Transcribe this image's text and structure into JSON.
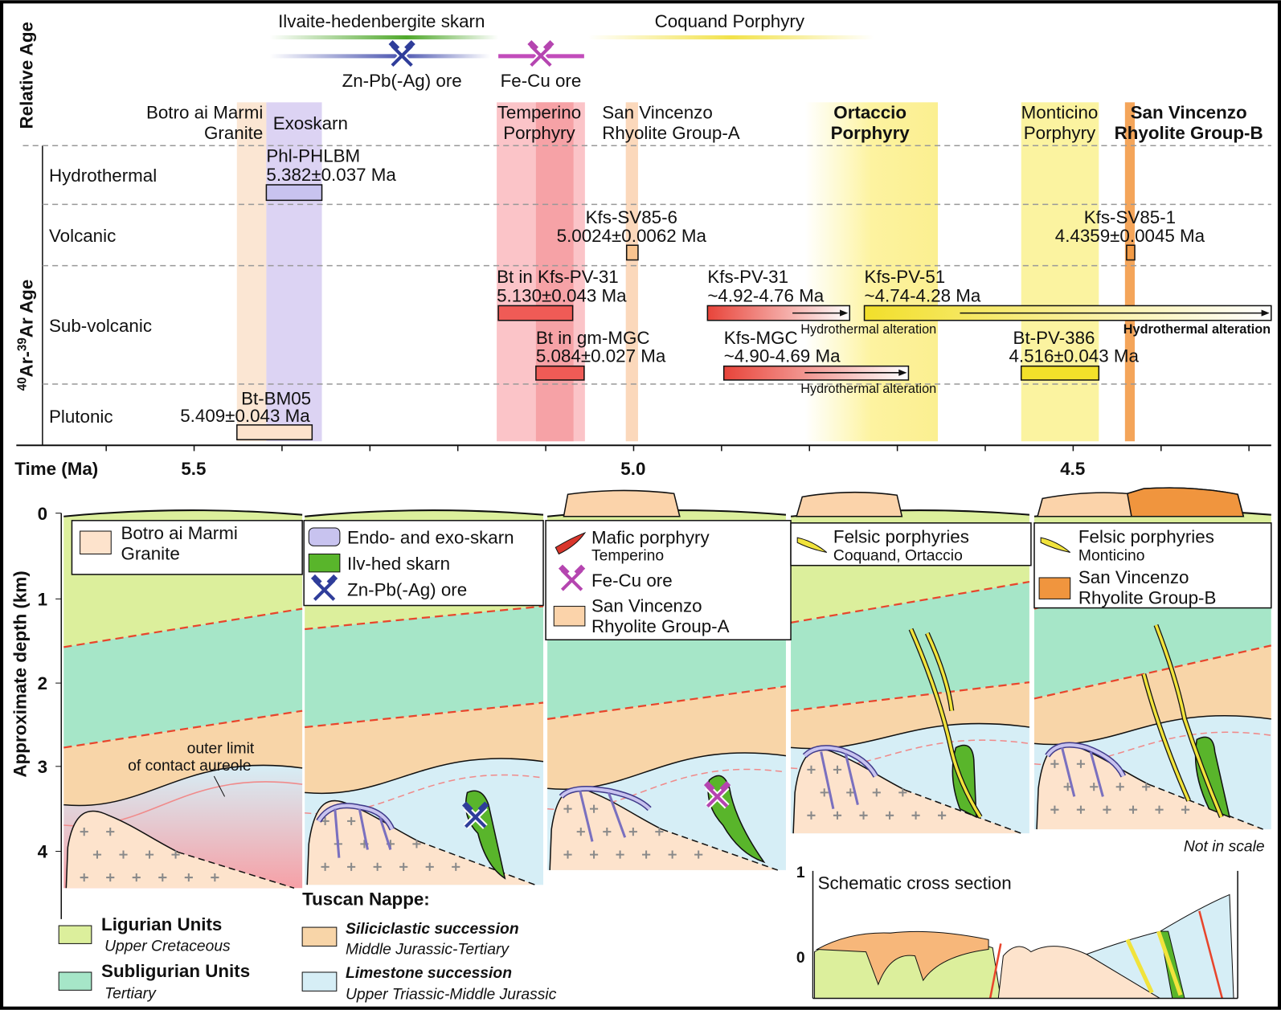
{
  "relative_age": {
    "title": "Relative Age",
    "skarn": "Ilvaite-hedenbergite skarn",
    "porphyry": "Coquand Porphyry",
    "ore_zn": "Zn-Pb(-Ag) ore",
    "ore_fe": "Fe-Cu ore"
  },
  "units": [
    [
      "Botro ai Marmi",
      "Granite"
    ],
    [
      "Exoskarn"
    ],
    [
      "Temperino",
      "Porphyry"
    ],
    [
      "San Vincenzo",
      "Rhyolite Group-A"
    ],
    [
      "Ortaccio",
      "Porphyry"
    ],
    [
      "Monticino",
      "Porphyry"
    ],
    [
      "San Vincenzo",
      "Rhyolite Group-B"
    ]
  ],
  "age_axis": {
    "label": [
      "40",
      "Ar-",
      "39",
      "Ar Age"
    ],
    "rows": [
      "Hydrothermal",
      "Volcanic",
      "Sub-volcanic",
      "Plutonic"
    ]
  },
  "samples": [
    {
      "name": "Phl-PHLBM",
      "age": "5.382±0.037 Ma"
    },
    {
      "name": "Kfs-SV85-6",
      "age": "5.0024±0.0062 Ma"
    },
    {
      "name": "Kfs-SV85-1",
      "age": "4.4359±0.0045 Ma"
    },
    {
      "name": "Bt in Kfs-PV-31",
      "age": "5.130±0.043 Ma"
    },
    {
      "name": "Kfs-PV-31",
      "age": "~4.92-4.76 Ma",
      "note": "Hydrothermal alteration"
    },
    {
      "name": "Kfs-PV-51",
      "age": "~4.74-4.28 Ma",
      "note": "Hydrothermal alteration"
    },
    {
      "name": "Bt in gm-MGC",
      "age": "5.084±0.027 Ma"
    },
    {
      "name": "Kfs-MGC",
      "age": "~4.90-4.69 Ma",
      "note": "Hydrothermal alteration"
    },
    {
      "name": "Bt-PV-386",
      "age": "4.516±0.043 Ma"
    },
    {
      "name": "Bt-BM05",
      "age": "5.409±0.043 Ma"
    }
  ],
  "time_axis": {
    "label": "Time (Ma)",
    "ticks": [
      "5.5",
      "5.0",
      "4.5"
    ]
  },
  "depth_axis": {
    "label": "Approximate depth (km)",
    "ticks": [
      "0",
      "1",
      "2",
      "3",
      "4"
    ]
  },
  "annotations": {
    "aureole": [
      "outer limit",
      "of contact aureole"
    ],
    "scale": "Not in scale"
  },
  "panel_legends": [
    [
      [
        "Botro ai Marmi",
        "Granite"
      ]
    ],
    [
      [
        "Endo- and exo-skarn"
      ],
      [
        "Ilv-hed skarn"
      ],
      [
        "Zn-Pb(-Ag) ore"
      ]
    ],
    [
      [
        "Mafic porphyry",
        "Temperino"
      ],
      [
        "Fe-Cu ore"
      ],
      [
        "San Vincenzo",
        "Rhyolite Group-A"
      ]
    ],
    [
      [
        "Felsic porphyries",
        "Coquand, Ortaccio"
      ]
    ],
    [
      [
        "Felsic porphyries",
        "Monticino"
      ],
      [
        "San Vincenzo",
        "Rhyolite Group-B"
      ]
    ]
  ],
  "legend": {
    "ligurian": {
      "name": "Ligurian Units",
      "age": "Upper Cretaceous"
    },
    "subligurian": {
      "name": "Subligurian Units",
      "age": "Tertiary"
    },
    "tuscan_title": "Tuscan Nappe:",
    "siliciclastic": {
      "name": "Siliciclastic succession",
      "age": "Middle Jurassic-Tertiary"
    },
    "limestone": {
      "name": "Limestone succession",
      "age": "Upper Triassic-Middle Jurassic"
    }
  },
  "inset": {
    "title": "Schematic cross section",
    "ticks": [
      "1",
      "0"
    ]
  }
}
